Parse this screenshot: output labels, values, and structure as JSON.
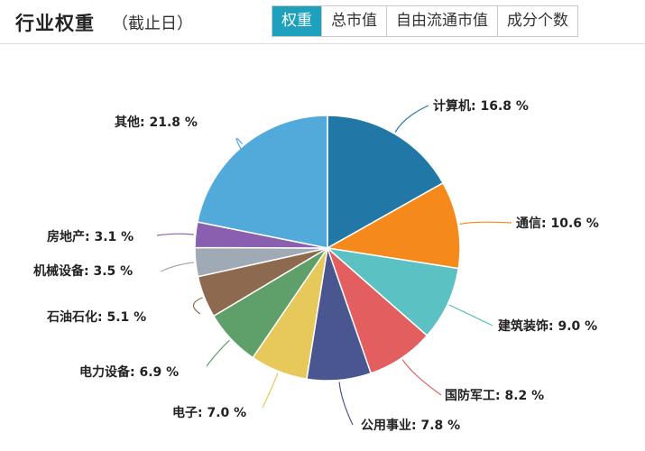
{
  "header": {
    "title": "行业权重",
    "subtitle": "（截止日）",
    "tabs": [
      {
        "label": "权重",
        "active": true
      },
      {
        "label": "总市值",
        "active": false
      },
      {
        "label": "自由流通市值",
        "active": false
      },
      {
        "label": "成分个数",
        "active": false
      }
    ],
    "accent_color": "#1fa1bd"
  },
  "chart_data": {
    "type": "pie",
    "legend": "none",
    "slices": [
      {
        "name": "计算机",
        "value": 16.8,
        "label": "计算机: 16.8 %",
        "color": "#2178a6"
      },
      {
        "name": "通信",
        "value": 10.6,
        "label": "通信: 10.6 %",
        "color": "#f5891b"
      },
      {
        "name": "建筑装饰",
        "value": 9.0,
        "label": "建筑装饰: 9.0 %",
        "color": "#5cc1c2"
      },
      {
        "name": "国防军工",
        "value": 8.2,
        "label": "国防军工: 8.2 %",
        "color": "#e35e5e"
      },
      {
        "name": "公用事业",
        "value": 7.8,
        "label": "公用事业: 7.8 %",
        "color": "#4a5690"
      },
      {
        "name": "电子",
        "value": 7.0,
        "label": "电子: 7.0 %",
        "color": "#e7c85a"
      },
      {
        "name": "电力设备",
        "value": 6.9,
        "label": "电力设备: 6.9 %",
        "color": "#5f9f6a"
      },
      {
        "name": "石油石化",
        "value": 5.1,
        "label": "石油石化: 5.1 %",
        "color": "#8d6a4f"
      },
      {
        "name": "机械设备",
        "value": 3.5,
        "label": "机械设备: 3.5 %",
        "color": "#9faab5"
      },
      {
        "name": "房地产",
        "value": 3.1,
        "label": "房地产: 3.1 %",
        "color": "#8a5fb0"
      },
      {
        "name": "其他",
        "value": 21.8,
        "label": "其他: 21.8 %",
        "color": "#52aadb"
      }
    ]
  }
}
